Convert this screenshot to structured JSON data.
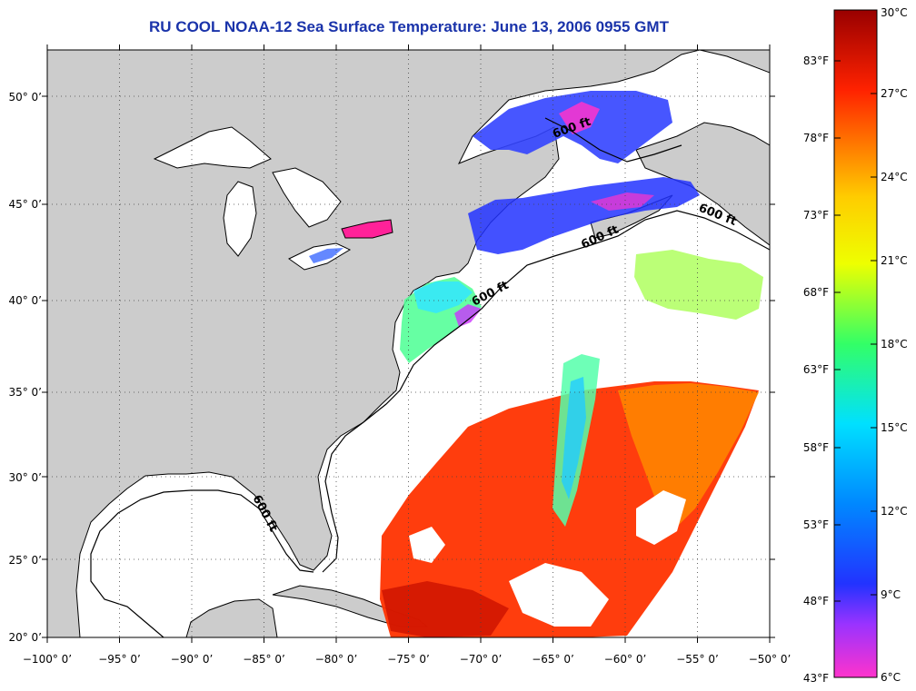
{
  "title": "RU COOL  NOAA-12  Sea Surface Temperature:  June 13, 2006 0955 GMT",
  "map": {
    "lon_range": [
      -100,
      -50
    ],
    "lat_range": [
      20,
      52.6
    ],
    "lon_ticks": [
      "−100° 0’",
      "−95° 0’",
      "−90° 0’",
      "−85° 0’",
      "−80° 0’",
      "−75° 0’",
      "−70° 0’",
      "−65° 0’",
      "−60° 0’",
      "−55° 0’",
      "−50° 0’"
    ],
    "lat_ticks": [
      "20° 0’",
      "25° 0’",
      "30° 0’",
      "35° 0’",
      "40° 0’",
      "45° 0’",
      "50° 0’"
    ],
    "contour_labels": [
      "600 ft",
      "600 ft",
      "600 ft",
      "600 ft",
      "600 ft"
    ],
    "colors": {
      "land": "#cccccc",
      "ocean": "#ffffff",
      "graticule": "#555555",
      "title": "#1a33aa"
    }
  },
  "colorbar": {
    "range_c": [
      6,
      30
    ],
    "celsius_labels": [
      "30°C",
      "27°C",
      "24°C",
      "21°C",
      "18°C",
      "15°C",
      "12°C",
      "9°C",
      "6°C"
    ],
    "fahrenheit_labels": [
      "83°F",
      "78°F",
      "73°F",
      "68°F",
      "63°F",
      "58°F",
      "53°F",
      "48°F",
      "43°F"
    ]
  }
}
